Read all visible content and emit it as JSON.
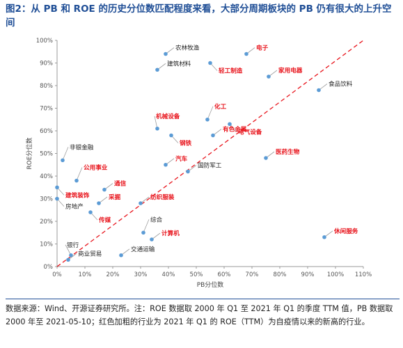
{
  "title": "图2：从 PB 和 ROE 的历史分位数匹配程度来看，大部分周期板块的 PB 仍有很大的上升空间",
  "source": "数据来源：Wind、开源证券研究所。注：ROE 数据取 2000 年 Q1 至 2021 年 Q1 的季度 TTM 值，PB 数据取 2000 年至 2021-05-10；红色加粗的行业为 2021 年 Q1 的 ROE（TTM）为自疫情以来的新高的行业。",
  "colors": {
    "point": "#5b9bd5",
    "diagonal": "#e8141c",
    "highlight": "#e8141c",
    "normal": "#222222",
    "title": "#1f4e96"
  },
  "chart_data": {
    "type": "scatter",
    "xlabel": "PB分位数",
    "ylabel": "ROE分位数",
    "xlim": [
      0,
      1.1
    ],
    "ylim": [
      0,
      1.0
    ],
    "x_ticks": [
      0,
      0.1,
      0.2,
      0.3,
      0.4,
      0.5,
      0.6,
      0.7,
      0.8,
      0.9,
      1.0,
      1.1
    ],
    "x_tick_labels": [
      "0%",
      "10%",
      "20%",
      "30%",
      "40%",
      "50%",
      "60%",
      "70%",
      "80%",
      "90%",
      "100%",
      "110%"
    ],
    "y_ticks": [
      0,
      0.1,
      0.2,
      0.3,
      0.4,
      0.5,
      0.6,
      0.7,
      0.8,
      0.9,
      1.0
    ],
    "y_tick_labels": [
      "0%",
      "10%",
      "20%",
      "30%",
      "40%",
      "50%",
      "60%",
      "70%",
      "80%",
      "90%",
      "100%"
    ],
    "grid": false,
    "diagonal": {
      "from": [
        0,
        0
      ],
      "to": [
        1.1,
        1.0
      ],
      "style": "dashed"
    },
    "points": [
      {
        "name": "农林牧渔",
        "x": 0.39,
        "y": 0.94,
        "highlight": false,
        "label_pos": "right"
      },
      {
        "name": "电子",
        "x": 0.68,
        "y": 0.94,
        "highlight": true,
        "label_pos": "right"
      },
      {
        "name": "轻工制造",
        "x": 0.55,
        "y": 0.9,
        "highlight": true,
        "label_pos": "below-right"
      },
      {
        "name": "建筑材料",
        "x": 0.36,
        "y": 0.87,
        "highlight": false,
        "label_pos": "right"
      },
      {
        "name": "家用电器",
        "x": 0.76,
        "y": 0.84,
        "highlight": true,
        "label_pos": "right"
      },
      {
        "name": "食品饮料",
        "x": 0.94,
        "y": 0.78,
        "highlight": false,
        "label_pos": "right"
      },
      {
        "name": "化工",
        "x": 0.54,
        "y": 0.65,
        "highlight": true,
        "label_pos": "above-right"
      },
      {
        "name": "机械设备",
        "x": 0.36,
        "y": 0.61,
        "highlight": true,
        "label_pos": "above-left"
      },
      {
        "name": "电气设备",
        "x": 0.62,
        "y": 0.63,
        "highlight": true,
        "label_pos": "below-right"
      },
      {
        "name": "有色金属",
        "x": 0.56,
        "y": 0.58,
        "highlight": true,
        "label_pos": "right"
      },
      {
        "name": "钢铁",
        "x": 0.41,
        "y": 0.58,
        "highlight": true,
        "label_pos": "below-right"
      },
      {
        "name": "非银金融",
        "x": 0.02,
        "y": 0.47,
        "highlight": false,
        "label_pos": "above-right"
      },
      {
        "name": "医药生物",
        "x": 0.75,
        "y": 0.48,
        "highlight": true,
        "label_pos": "right"
      },
      {
        "name": "汽车",
        "x": 0.39,
        "y": 0.45,
        "highlight": true,
        "label_pos": "right"
      },
      {
        "name": "国防军工",
        "x": 0.47,
        "y": 0.42,
        "highlight": false,
        "label_pos": "right"
      },
      {
        "name": "公用事业",
        "x": 0.07,
        "y": 0.38,
        "highlight": true,
        "label_pos": "above-right"
      },
      {
        "name": "通信",
        "x": 0.17,
        "y": 0.34,
        "highlight": true,
        "label_pos": "right"
      },
      {
        "name": "建筑装饰",
        "x": 0.0,
        "y": 0.35,
        "highlight": true,
        "label_pos": "below-right"
      },
      {
        "name": "房地产",
        "x": 0.0,
        "y": 0.3,
        "highlight": false,
        "label_pos": "below-right"
      },
      {
        "name": "采掘",
        "x": 0.15,
        "y": 0.28,
        "highlight": true,
        "label_pos": "right"
      },
      {
        "name": "纺织服装",
        "x": 0.3,
        "y": 0.28,
        "highlight": true,
        "label_pos": "right"
      },
      {
        "name": "传媒",
        "x": 0.12,
        "y": 0.24,
        "highlight": true,
        "label_pos": "below-right"
      },
      {
        "name": "综合",
        "x": 0.31,
        "y": 0.15,
        "highlight": false,
        "label_pos": "above-right"
      },
      {
        "name": "计算机",
        "x": 0.34,
        "y": 0.12,
        "highlight": true,
        "label_pos": "right"
      },
      {
        "name": "休闲服务",
        "x": 0.96,
        "y": 0.13,
        "highlight": true,
        "label_pos": "right"
      },
      {
        "name": "银行",
        "x": 0.05,
        "y": 0.05,
        "highlight": false,
        "label_pos": "above"
      },
      {
        "name": "交通运输",
        "x": 0.23,
        "y": 0.05,
        "highlight": false,
        "label_pos": "right"
      },
      {
        "name": "商业贸易",
        "x": 0.04,
        "y": 0.03,
        "highlight": false,
        "label_pos": "right"
      }
    ]
  }
}
